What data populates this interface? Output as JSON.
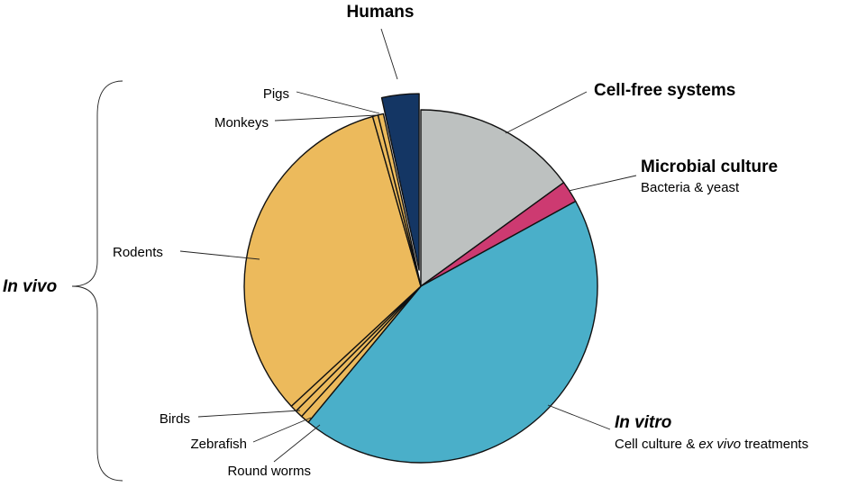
{
  "chart_data": {
    "type": "pie",
    "title": "",
    "slices": [
      {
        "name": "Cell-free systems",
        "value": 15.0,
        "color": "#bdc1c0"
      },
      {
        "name": "Microbial culture",
        "value": 2.0,
        "subtitle": "Bacteria & yeast",
        "color": "#cd3a71"
      },
      {
        "name": "In vitro",
        "value": 44.0,
        "subtitle_parts": [
          "Cell culture & ",
          "ex vivo",
          " treatments"
        ],
        "color": "#4aafc9"
      },
      {
        "name": "Round worms",
        "value": 0.8,
        "color": "#ecba5c"
      },
      {
        "name": "Zebrafish",
        "value": 0.7,
        "color": "#ecba5c"
      },
      {
        "name": "Birds",
        "value": 0.6,
        "color": "#ecba5c"
      },
      {
        "name": "Rodents",
        "value": 32.5,
        "color": "#ecba5c"
      },
      {
        "name": "Monkeys",
        "value": 0.5,
        "color": "#ecba5c"
      },
      {
        "name": "Pigs",
        "value": 0.5,
        "color": "#ecba5c"
      },
      {
        "name": "Humans",
        "value": 3.4,
        "color": "#143664",
        "exploded": true
      }
    ],
    "group_label": "In vivo",
    "group_members": [
      "Round worms",
      "Zebrafish",
      "Birds",
      "Rodents",
      "Monkeys",
      "Pigs"
    ],
    "legend": "none"
  }
}
